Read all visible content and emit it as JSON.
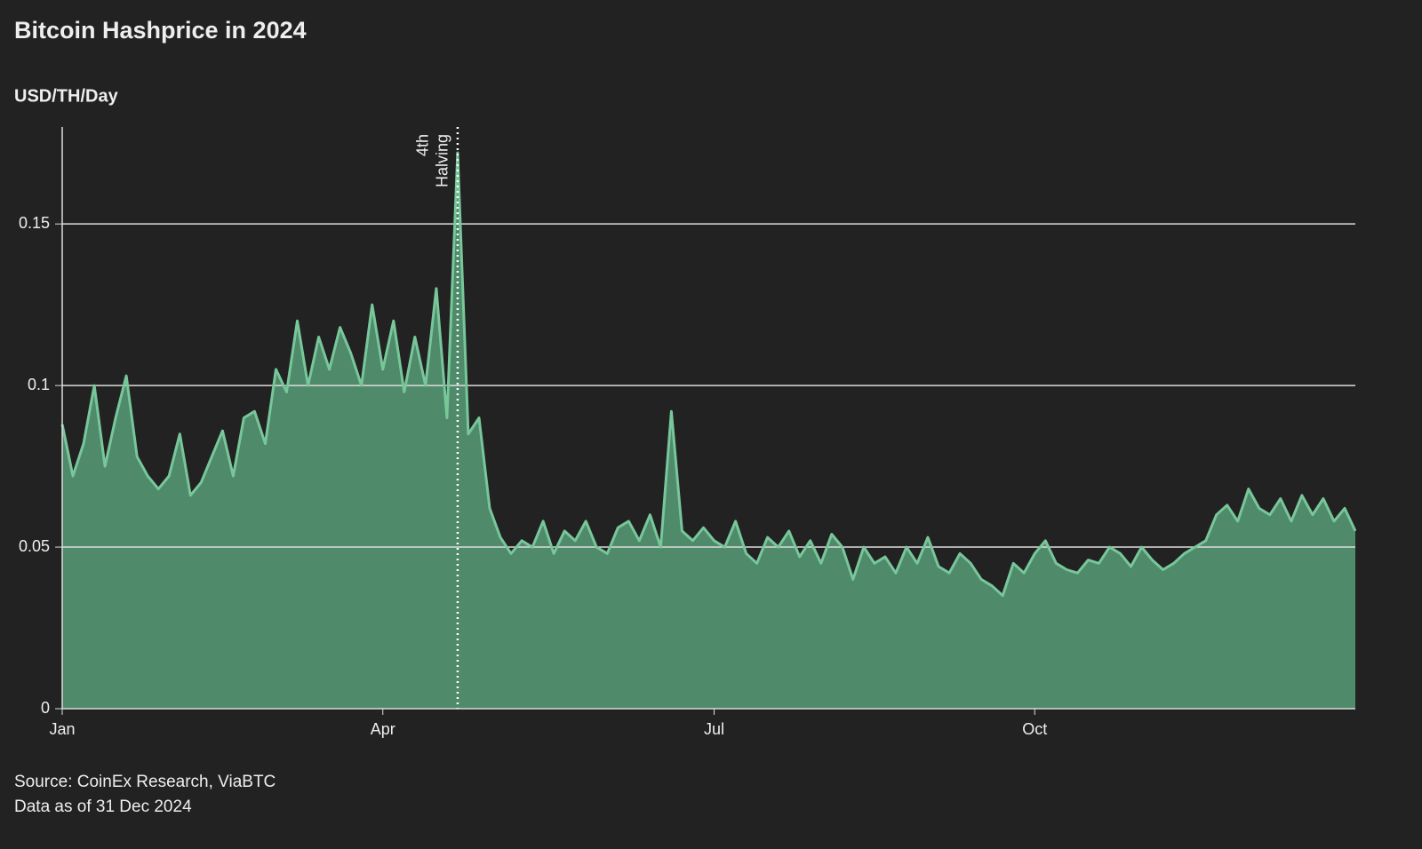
{
  "chart_data": {
    "type": "area",
    "title": "Bitcoin Hashprice in 2024",
    "y_label": "USD/TH/Day",
    "sources": [
      "Source: CoinEx Research, ViaBTC",
      "Data as of 31 Dec 2024"
    ],
    "color": "#78c79b",
    "fill": "#4f8a6a",
    "ylim": [
      0,
      0.18
    ],
    "yticks": [
      0,
      0.05,
      0.1,
      0.15
    ],
    "grid": true,
    "annotation": {
      "text": [
        "4th",
        "Halving"
      ],
      "category": 37
    },
    "categories": [
      "Jan",
      null,
      null,
      null,
      null,
      null,
      null,
      null,
      null,
      null,
      null,
      null,
      null,
      null,
      null,
      null,
      null,
      null,
      null,
      null,
      null,
      null,
      null,
      null,
      null,
      null,
      null,
      null,
      null,
      null,
      "Apr",
      null,
      null,
      null,
      null,
      null,
      null,
      null,
      null,
      null,
      null,
      null,
      null,
      null,
      null,
      null,
      null,
      null,
      null,
      null,
      null,
      null,
      null,
      null,
      null,
      null,
      null,
      null,
      null,
      null,
      null,
      "Jul",
      null,
      null,
      null,
      null,
      null,
      null,
      null,
      null,
      null,
      null,
      null,
      null,
      null,
      null,
      null,
      null,
      null,
      null,
      null,
      null,
      null,
      null,
      null,
      null,
      null,
      null,
      null,
      null,
      null,
      "Oct",
      null,
      null,
      null,
      null,
      null,
      null,
      null,
      null,
      null,
      null,
      null,
      null,
      null,
      null,
      null,
      null,
      null,
      null,
      null,
      null,
      null,
      null,
      null,
      null,
      null,
      null,
      null,
      null,
      null,
      null
    ],
    "values": [
      0.088,
      0.072,
      0.082,
      0.1,
      0.075,
      0.09,
      0.103,
      0.078,
      0.072,
      0.068,
      0.072,
      0.085,
      0.066,
      0.07,
      0.078,
      0.086,
      0.072,
      0.09,
      0.092,
      0.082,
      0.105,
      0.098,
      0.12,
      0.1,
      0.115,
      0.105,
      0.118,
      0.11,
      0.1,
      0.125,
      0.105,
      0.12,
      0.098,
      0.115,
      0.1,
      0.13,
      0.09,
      0.172,
      0.085,
      0.09,
      0.062,
      0.053,
      0.048,
      0.052,
      0.05,
      0.058,
      0.048,
      0.055,
      0.052,
      0.058,
      0.05,
      0.048,
      0.056,
      0.058,
      0.052,
      0.06,
      0.05,
      0.092,
      0.055,
      0.052,
      0.056,
      0.052,
      0.05,
      0.058,
      0.048,
      0.045,
      0.053,
      0.05,
      0.055,
      0.047,
      0.052,
      0.045,
      0.054,
      0.05,
      0.04,
      0.05,
      0.045,
      0.047,
      0.042,
      0.05,
      0.045,
      0.053,
      0.044,
      0.042,
      0.048,
      0.045,
      0.04,
      0.038,
      0.035,
      0.045,
      0.042,
      0.048,
      0.052,
      0.045,
      0.043,
      0.042,
      0.046,
      0.045,
      0.05,
      0.048,
      0.044,
      0.05,
      0.046,
      0.043,
      0.045,
      0.048,
      0.05,
      0.052,
      0.06,
      0.063,
      0.058,
      0.068,
      0.062,
      0.06,
      0.065,
      0.058,
      0.066,
      0.06,
      0.065,
      0.058,
      0.062,
      0.055
    ]
  }
}
